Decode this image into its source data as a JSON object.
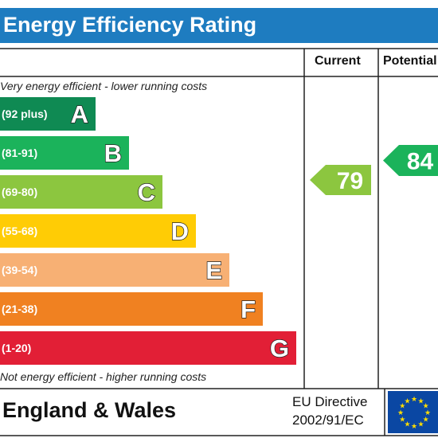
{
  "title": "Energy Efficiency Rating",
  "columns": {
    "current": "Current",
    "potential": "Potential"
  },
  "top_caption": "Very energy efficient - lower running costs",
  "bottom_caption": "Not energy efficient - higher running costs",
  "footer": {
    "region": "England & Wales",
    "directive_line1": "EU Directive",
    "directive_line2": "2002/91/EC"
  },
  "colors": {
    "header": "#1e7cc0",
    "A": "#0f8a53",
    "B": "#1bb35b",
    "C": "#8cc63f",
    "D": "#ffcc05",
    "E": "#f7b074",
    "F": "#f08121",
    "G": "#e21f36",
    "eu_flag": "#0a47a3",
    "eu_stars": "#ffdd00"
  },
  "chart_data": {
    "type": "bar",
    "categories": [
      "A",
      "B",
      "C",
      "D",
      "E",
      "F",
      "G"
    ],
    "ranges": [
      "(92 plus)",
      "(81-91)",
      "(69-80)",
      "(55-68)",
      "(39-54)",
      "(21-38)",
      "(1-20)"
    ],
    "current": {
      "value": 79,
      "band": "C"
    },
    "potential": {
      "value": 84,
      "band": "B"
    }
  }
}
